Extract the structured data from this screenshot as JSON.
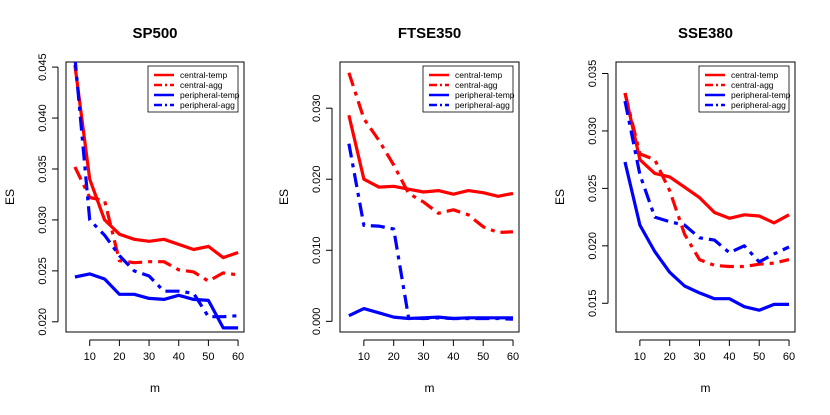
{
  "chart_data": [
    {
      "type": "line",
      "title": "SP500",
      "xlabel": "m",
      "ylabel": "ES",
      "xlim": [
        2,
        62
      ],
      "ylim": [
        0.019,
        0.0455
      ],
      "xticks": [
        10,
        20,
        30,
        40,
        50,
        60
      ],
      "xtick_labels": [
        "10",
        "20",
        "30",
        "40",
        "50",
        "60"
      ],
      "yticks": [
        0.02,
        0.025,
        0.03,
        0.035,
        0.04,
        0.045
      ],
      "ytick_labels": [
        "0.020",
        "0.025",
        "0.030",
        "0.035",
        "0.040",
        "0.045"
      ],
      "legend_position": "top-right",
      "x": [
        5,
        10,
        15,
        20,
        25,
        30,
        35,
        40,
        45,
        50,
        55,
        60
      ],
      "series": [
        {
          "name": "central-temp",
          "color": "#ff0000",
          "style": "solid",
          "values": [
            0.0452,
            0.034,
            0.03,
            0.0286,
            0.0281,
            0.0279,
            0.0281,
            0.0276,
            0.0271,
            0.0274,
            0.0263,
            0.0268
          ]
        },
        {
          "name": "central-agg",
          "color": "#ff0000",
          "style": "dashdot",
          "values": [
            0.0352,
            0.0322,
            0.0319,
            0.026,
            0.0258,
            0.0259,
            0.0259,
            0.0251,
            0.0249,
            0.024,
            0.0248,
            0.0246
          ]
        },
        {
          "name": "peripheral-temp",
          "color": "#0000ff",
          "style": "solid",
          "values": [
            0.0244,
            0.0247,
            0.0242,
            0.0227,
            0.0227,
            0.0223,
            0.0222,
            0.0226,
            0.0222,
            0.0221,
            0.0194,
            0.0194
          ]
        },
        {
          "name": "peripheral-agg",
          "color": "#0000ff",
          "style": "dashdot",
          "values": [
            0.046,
            0.03,
            0.0285,
            0.0265,
            0.025,
            0.0245,
            0.023,
            0.023,
            0.0228,
            0.0205,
            0.0205,
            0.0206
          ]
        }
      ]
    },
    {
      "type": "line",
      "title": "FTSE350",
      "xlabel": "m",
      "ylabel": "ES",
      "xlim": [
        2,
        62
      ],
      "ylim": [
        -0.0015,
        0.0365
      ],
      "xticks": [
        10,
        20,
        30,
        40,
        50,
        60
      ],
      "xtick_labels": [
        "10",
        "20",
        "30",
        "40",
        "50",
        "60"
      ],
      "yticks": [
        0.0,
        0.01,
        0.02,
        0.03
      ],
      "ytick_labels": [
        "0.000",
        "0.010",
        "0.020",
        "0.030"
      ],
      "legend_position": "top-right",
      "x": [
        5,
        10,
        15,
        20,
        25,
        30,
        35,
        40,
        45,
        50,
        55,
        60
      ],
      "series": [
        {
          "name": "central-temp",
          "color": "#ff0000",
          "style": "solid",
          "values": [
            0.029,
            0.02,
            0.0189,
            0.019,
            0.0186,
            0.0182,
            0.0184,
            0.0179,
            0.0184,
            0.0181,
            0.0176,
            0.018
          ]
        },
        {
          "name": "central-agg",
          "color": "#ff0000",
          "style": "dashdot",
          "values": [
            0.035,
            0.0285,
            0.0255,
            0.022,
            0.018,
            0.0168,
            0.0152,
            0.0157,
            0.015,
            0.0133,
            0.0125,
            0.0126
          ]
        },
        {
          "name": "peripheral-temp",
          "color": "#0000ff",
          "style": "solid",
          "values": [
            0.0008,
            0.0018,
            0.0012,
            0.0006,
            0.0004,
            0.0005,
            0.0006,
            0.0004,
            0.0005,
            0.0005,
            0.0005,
            0.0005
          ]
        },
        {
          "name": "peripheral-agg",
          "color": "#0000ff",
          "style": "dashdot",
          "values": [
            0.025,
            0.0135,
            0.0134,
            0.013,
            0.0005,
            0.0004,
            0.0005,
            0.0004,
            0.0004,
            0.0004,
            0.0004,
            0.0003
          ]
        }
      ]
    },
    {
      "type": "line",
      "title": "SSE380",
      "xlabel": "m",
      "ylabel": "ES",
      "xlim": [
        2,
        62
      ],
      "ylim": [
        0.0125,
        0.036
      ],
      "xticks": [
        10,
        20,
        30,
        40,
        50,
        60
      ],
      "xtick_labels": [
        "10",
        "20",
        "30",
        "40",
        "50",
        "60"
      ],
      "yticks": [
        0.015,
        0.02,
        0.025,
        0.03,
        0.035
      ],
      "ytick_labels": [
        "0.015",
        "0.020",
        "0.025",
        "0.030",
        "0.035"
      ],
      "legend_position": "top-right",
      "x": [
        5,
        10,
        15,
        20,
        25,
        30,
        35,
        40,
        45,
        50,
        55,
        60
      ],
      "series": [
        {
          "name": "central-temp",
          "color": "#ff0000",
          "style": "solid",
          "values": [
            0.0333,
            0.0275,
            0.0263,
            0.026,
            0.0251,
            0.0242,
            0.0229,
            0.0224,
            0.0227,
            0.0226,
            0.022,
            0.0227
          ]
        },
        {
          "name": "central-agg",
          "color": "#ff0000",
          "style": "dashdot",
          "values": [
            0.0333,
            0.028,
            0.0275,
            0.0248,
            0.021,
            0.0188,
            0.0183,
            0.0182,
            0.0182,
            0.0184,
            0.0185,
            0.0188
          ]
        },
        {
          "name": "peripheral-temp",
          "color": "#0000ff",
          "style": "solid",
          "values": [
            0.0273,
            0.0218,
            0.0195,
            0.0177,
            0.0165,
            0.0159,
            0.0154,
            0.0154,
            0.0147,
            0.0144,
            0.0149,
            0.0149
          ]
        },
        {
          "name": "peripheral-agg",
          "color": "#0000ff",
          "style": "dashdot",
          "values": [
            0.0326,
            0.0262,
            0.0225,
            0.0221,
            0.0218,
            0.0207,
            0.0205,
            0.0194,
            0.02,
            0.0186,
            0.0193,
            0.0199
          ]
        }
      ]
    }
  ]
}
